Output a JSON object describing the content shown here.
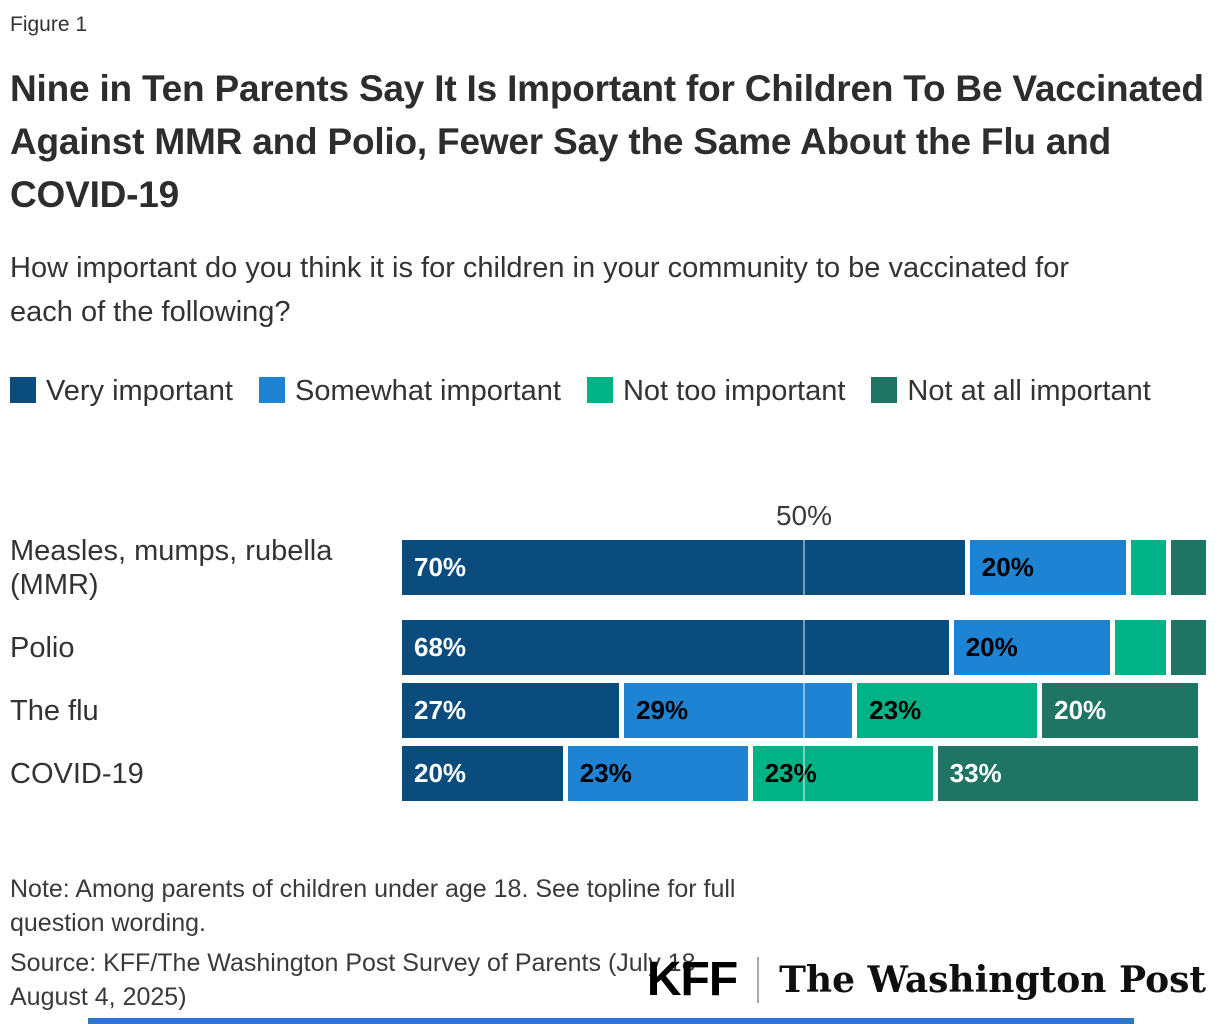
{
  "figure_label": "Figure 1",
  "title": "Nine in Ten Parents Say It Is Important for Children To Be Vaccinated Against MMR and Polio, Fewer Say the Same About the Flu and COVID-19",
  "subtitle": "How important do you think it is for children in your community to be vaccinated for each of the following?",
  "legend": {
    "items": [
      {
        "label": "Very important",
        "color": "#0B4C7E"
      },
      {
        "label": "Somewhat important",
        "color": "#1F83D4"
      },
      {
        "label": "Not too important",
        "color": "#00B286"
      },
      {
        "label": "Not at all important",
        "color": "#1F7564"
      }
    ]
  },
  "chart_data": {
    "type": "bar",
    "orientation": "horizontal-stacked",
    "title": "Nine in Ten Parents Say It Is Important for Children To Be Vaccinated Against MMR and Polio, Fewer Say the Same About the Flu and COVID-19",
    "question": "How important do you think it is for children in your community to be vaccinated for each of the following?",
    "categories": [
      "Measles, mumps, rubella (MMR)",
      "Polio",
      "The flu",
      "COVID-19"
    ],
    "series": [
      {
        "name": "Very important",
        "color": "#0B4C7E",
        "label_color": "#ffffff",
        "values": [
          70,
          68,
          27,
          20
        ]
      },
      {
        "name": "Somewhat important",
        "color": "#1F83D4",
        "label_color": "#000000",
        "values": [
          20,
          20,
          29,
          23
        ]
      },
      {
        "name": "Not too important",
        "color": "#00B286",
        "label_color": "#000000",
        "values": [
          5,
          7,
          23,
          23
        ]
      },
      {
        "name": "Not at all important",
        "color": "#1F7564",
        "label_color": "#ffffff",
        "values": [
          5,
          5,
          20,
          33
        ]
      }
    ],
    "xlim": [
      0,
      100
    ],
    "x_tick": {
      "value": 50,
      "label": "50%"
    },
    "grid": "single-vertical-line-at-50",
    "legend_position": "top",
    "value_label_format": "{v}%",
    "min_labeled_value": 10
  },
  "note": "Note: Among parents of children under age 18. See topline for full question wording.",
  "source": "Source: KFF/The Washington Post Survey of Parents (July 18-August 4, 2025)",
  "logos": {
    "kff": "KFF",
    "wapo": "The Washington Post"
  },
  "colors": {
    "accent_bottom_bar": "#2E79C2",
    "title_text": "#2d2d2d",
    "body_text": "#333333"
  }
}
